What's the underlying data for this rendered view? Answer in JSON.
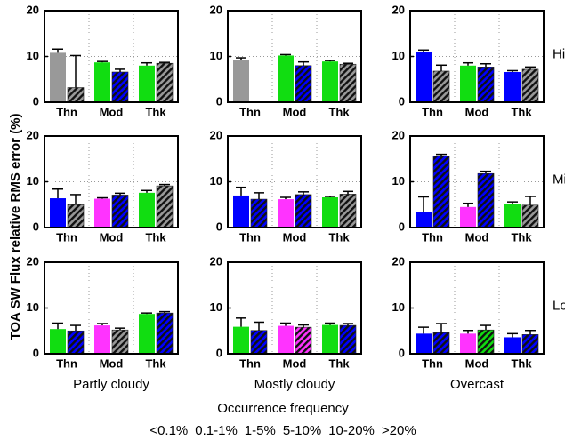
{
  "figure": {
    "ylabel": "TOA SW Flux relative RMS error (%)",
    "columns": [
      "Partly cloudy",
      "Mostly cloudy",
      "Overcast"
    ],
    "rows": [
      "High",
      "Mid",
      "Low"
    ],
    "legend_title": "Occurrence frequency",
    "legend": [
      {
        "label": "<0.1%",
        "color": "#999999"
      },
      {
        "label": "0.1-1%",
        "color": "#0000ff"
      },
      {
        "label": "1-5%",
        "color": "#11dd11"
      },
      {
        "label": "5-10%",
        "color": "#ff33ff"
      },
      {
        "label": "10-20%",
        "color": "#ff0000"
      },
      {
        "label": ">20%",
        "color": "#000000"
      }
    ]
  },
  "chart_data": [
    {
      "type": "bar",
      "categories": [
        "Thn",
        "Mod",
        "Thk"
      ],
      "ylim": [
        0,
        20
      ],
      "yticks": [
        0,
        10,
        20
      ],
      "grid": true,
      "series": [
        {
          "hatch": false,
          "values": [
            10.8,
            8.7,
            8.0
          ],
          "errors": [
            0.8,
            0.2,
            0.6
          ],
          "colors": [
            "#999999",
            "#11dd11",
            "#11dd11"
          ]
        },
        {
          "hatch": true,
          "values": [
            3.2,
            6.6,
            8.5
          ],
          "errors": [
            7.0,
            0.6,
            0.2
          ],
          "colors": [
            "#999999",
            "#0000ff",
            "#999999"
          ]
        }
      ]
    },
    {
      "type": "bar",
      "categories": [
        "Thn",
        "Mod",
        "Thk"
      ],
      "ylim": [
        0,
        20
      ],
      "yticks": [
        0,
        10,
        20
      ],
      "grid": true,
      "series": [
        {
          "hatch": false,
          "values": [
            9.2,
            10.2,
            8.9
          ],
          "errors": [
            0.5,
            0.2,
            0.2
          ],
          "colors": [
            "#999999",
            "#11dd11",
            "#11dd11"
          ]
        },
        {
          "hatch": true,
          "values": [
            null,
            8.0,
            8.3
          ],
          "errors": [
            null,
            0.8,
            0.2
          ],
          "colors": [
            null,
            "#0000ff",
            "#999999"
          ]
        }
      ]
    },
    {
      "type": "bar",
      "categories": [
        "Thn",
        "Mod",
        "Thk"
      ],
      "ylim": [
        0,
        20
      ],
      "yticks": [
        0,
        10,
        20
      ],
      "grid": true,
      "series": [
        {
          "hatch": false,
          "values": [
            11.0,
            8.0,
            6.6
          ],
          "errors": [
            0.4,
            0.6,
            0.3
          ],
          "colors": [
            "#0000ff",
            "#11dd11",
            "#0000ff"
          ]
        },
        {
          "hatch": true,
          "values": [
            6.8,
            7.7,
            7.2
          ],
          "errors": [
            1.3,
            0.7,
            0.5
          ],
          "colors": [
            "#999999",
            "#0000ff",
            "#999999"
          ]
        }
      ]
    },
    {
      "type": "bar",
      "categories": [
        "Thn",
        "Mod",
        "Thk"
      ],
      "ylim": [
        0,
        20
      ],
      "yticks": [
        0,
        10,
        20
      ],
      "grid": true,
      "series": [
        {
          "hatch": false,
          "values": [
            6.4,
            6.3,
            7.6
          ],
          "errors": [
            2.0,
            0.2,
            0.5
          ],
          "colors": [
            "#0000ff",
            "#ff33ff",
            "#11dd11"
          ]
        },
        {
          "hatch": true,
          "values": [
            5.0,
            7.1,
            9.1
          ],
          "errors": [
            2.2,
            0.4,
            0.3
          ],
          "colors": [
            "#999999",
            "#0000ff",
            "#999999"
          ]
        }
      ]
    },
    {
      "type": "bar",
      "categories": [
        "Thn",
        "Mod",
        "Thk"
      ],
      "ylim": [
        0,
        20
      ],
      "yticks": [
        0,
        10,
        20
      ],
      "grid": true,
      "series": [
        {
          "hatch": false,
          "values": [
            7.0,
            6.2,
            6.6
          ],
          "errors": [
            1.8,
            0.4,
            0.2
          ],
          "colors": [
            "#0000ff",
            "#ff33ff",
            "#11dd11"
          ]
        },
        {
          "hatch": true,
          "values": [
            6.2,
            7.2,
            7.3
          ],
          "errors": [
            1.4,
            0.6,
            0.6
          ],
          "colors": [
            "#0000ff",
            "#0000ff",
            "#999999"
          ]
        }
      ]
    },
    {
      "type": "bar",
      "categories": [
        "Thn",
        "Mod",
        "Thk"
      ],
      "ylim": [
        0,
        20
      ],
      "yticks": [
        0,
        10,
        20
      ],
      "grid": true,
      "series": [
        {
          "hatch": false,
          "values": [
            3.4,
            4.5,
            5.2
          ],
          "errors": [
            3.3,
            0.8,
            0.4
          ],
          "colors": [
            "#0000ff",
            "#ff33ff",
            "#11dd11"
          ]
        },
        {
          "hatch": true,
          "values": [
            15.6,
            11.8,
            4.9
          ],
          "errors": [
            0.4,
            0.5,
            1.9
          ],
          "colors": [
            "#0000ff",
            "#0000ff",
            "#999999"
          ]
        }
      ]
    },
    {
      "type": "bar",
      "categories": [
        "Thn",
        "Mod",
        "Thk"
      ],
      "ylim": [
        0,
        20
      ],
      "yticks": [
        0,
        10,
        20
      ],
      "grid": true,
      "series": [
        {
          "hatch": false,
          "values": [
            5.4,
            6.2,
            8.7
          ],
          "errors": [
            1.3,
            0.4,
            0.2
          ],
          "colors": [
            "#11dd11",
            "#ff33ff",
            "#11dd11"
          ]
        },
        {
          "hatch": true,
          "values": [
            5.0,
            5.2,
            8.9
          ],
          "errors": [
            1.2,
            0.4,
            0.3
          ],
          "colors": [
            "#0000ff",
            "#999999",
            "#0000ff"
          ]
        }
      ]
    },
    {
      "type": "bar",
      "categories": [
        "Thn",
        "Mod",
        "Thk"
      ],
      "ylim": [
        0,
        20
      ],
      "yticks": [
        0,
        10,
        20
      ],
      "grid": true,
      "series": [
        {
          "hatch": false,
          "values": [
            5.9,
            6.1,
            6.3
          ],
          "errors": [
            1.9,
            0.6,
            0.4
          ],
          "colors": [
            "#11dd11",
            "#ff33ff",
            "#11dd11"
          ]
        },
        {
          "hatch": true,
          "values": [
            5.1,
            5.8,
            6.2
          ],
          "errors": [
            1.8,
            0.5,
            0.4
          ],
          "colors": [
            "#0000ff",
            "#ff33ff",
            "#0000ff"
          ]
        }
      ]
    },
    {
      "type": "bar",
      "categories": [
        "Thn",
        "Mod",
        "Thk"
      ],
      "ylim": [
        0,
        20
      ],
      "yticks": [
        0,
        10,
        20
      ],
      "grid": true,
      "series": [
        {
          "hatch": false,
          "values": [
            4.4,
            4.4,
            3.6
          ],
          "errors": [
            1.4,
            0.7,
            0.8
          ],
          "colors": [
            "#0000ff",
            "#ff33ff",
            "#0000ff"
          ]
        },
        {
          "hatch": true,
          "values": [
            4.6,
            5.2,
            4.2
          ],
          "errors": [
            2.0,
            1.0,
            0.9
          ],
          "colors": [
            "#0000ff",
            "#11dd11",
            "#0000ff"
          ]
        }
      ]
    }
  ]
}
